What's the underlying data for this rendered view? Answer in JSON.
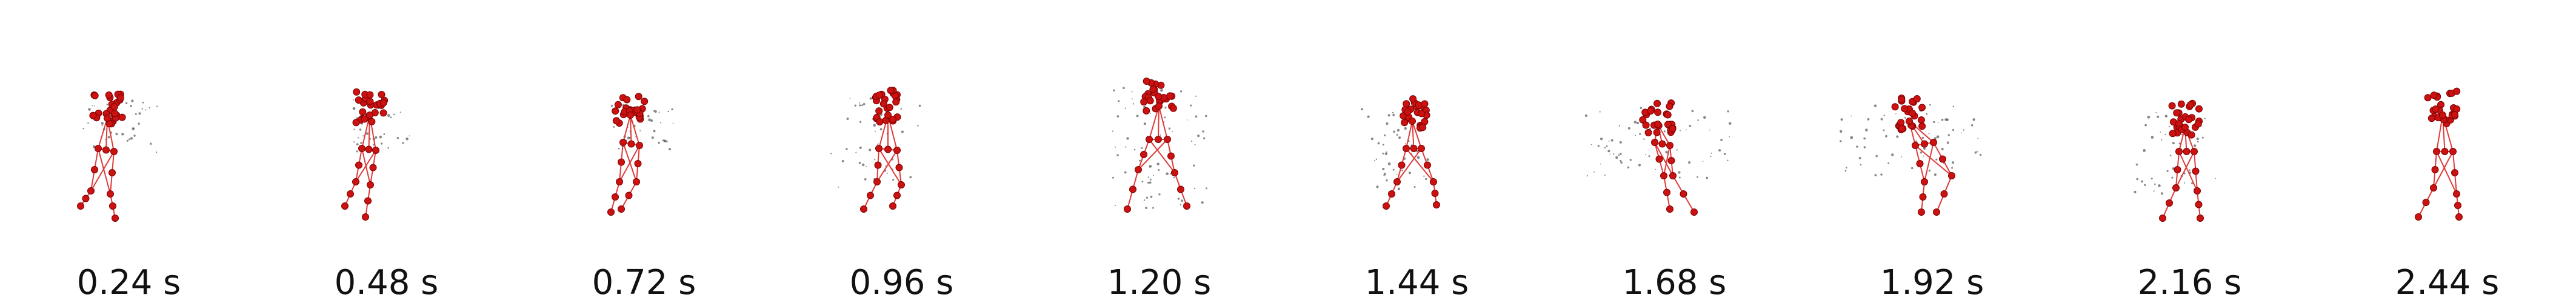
{
  "frames": [
    {
      "time_label": "0.24 s"
    },
    {
      "time_label": "0.48 s"
    },
    {
      "time_label": "0.72 s"
    },
    {
      "time_label": "0.96 s"
    },
    {
      "time_label": "1.20 s"
    },
    {
      "time_label": "1.44 s"
    },
    {
      "time_label": "1.68 s"
    },
    {
      "time_label": "1.92 s"
    },
    {
      "time_label": "2.16 s"
    },
    {
      "time_label": "2.44 s"
    }
  ],
  "colors": {
    "joint_fill": "#cc1111",
    "joint_stroke": "#7a0000",
    "bone": "#e03a3a",
    "trail": "#555555",
    "background": "#ffffff",
    "label_text": "#111111"
  }
}
